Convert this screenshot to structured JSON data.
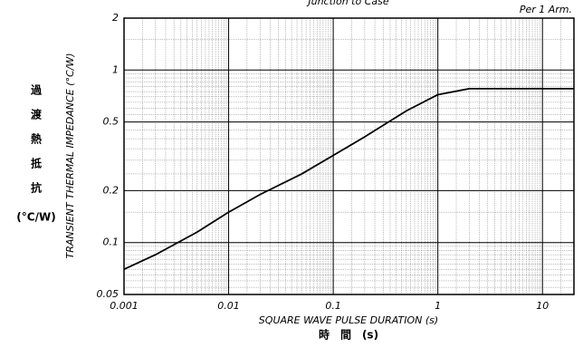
{
  "chart_data": {
    "type": "line",
    "title": "Junction to Case",
    "annotation": "Per 1 Arm.",
    "ylabel": "TRANSIENT THERMAL IMPEDANCE (°C/W)",
    "ylabel_ja": [
      "過",
      "渡",
      "熱",
      "抵",
      "抗"
    ],
    "ylabel_ja_unit": "(°C/W)",
    "xlabel": "SQUARE WAVE PULSE DURATION (s)",
    "xlabel_ja": "時　間　(s)",
    "log_x": true,
    "log_y": true,
    "grid": true,
    "xlim": [
      0.001,
      20
    ],
    "xticks": [
      0.001,
      0.01,
      0.1,
      1,
      10
    ],
    "ylim": [
      0.05,
      2
    ],
    "yticks": [
      0.05,
      0.1,
      0.2,
      0.5,
      1,
      2
    ],
    "x": [
      0.001,
      0.002,
      0.005,
      0.01,
      0.02,
      0.05,
      0.1,
      0.2,
      0.5,
      1,
      2,
      5,
      10,
      20
    ],
    "series": [
      {
        "color": "#000000",
        "values": [
          0.07,
          0.085,
          0.115,
          0.15,
          0.19,
          0.25,
          0.32,
          0.41,
          0.58,
          0.72,
          0.78,
          0.78,
          0.78,
          0.78
        ]
      }
    ]
  }
}
